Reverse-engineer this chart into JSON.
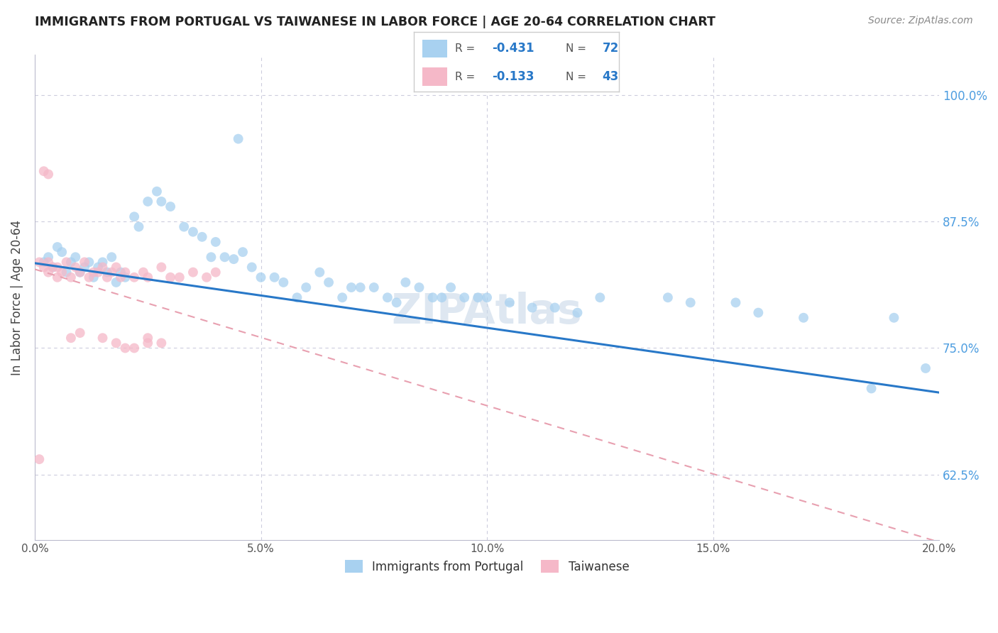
{
  "title": "IMMIGRANTS FROM PORTUGAL VS TAIWANESE IN LABOR FORCE | AGE 20-64 CORRELATION CHART",
  "source": "Source: ZipAtlas.com",
  "xlabel": "",
  "ylabel": "In Labor Force | Age 20-64",
  "xlim": [
    0.0,
    0.2
  ],
  "ylim": [
    0.56,
    1.04
  ],
  "yticks": [
    0.625,
    0.75,
    0.875,
    1.0
  ],
  "ytick_labels": [
    "62.5%",
    "75.0%",
    "87.5%",
    "100.0%"
  ],
  "xticks": [
    0.0,
    0.05,
    0.1,
    0.15,
    0.2
  ],
  "xtick_labels": [
    "0.0%",
    "5.0%",
    "10.0%",
    "15.0%",
    "20.0%"
  ],
  "R_portugal": -0.431,
  "N_portugal": 72,
  "R_taiwanese": -0.133,
  "N_taiwanese": 43,
  "color_portugal": "#a8d1f0",
  "color_taiwanese": "#f5b8c8",
  "trend_color_portugal": "#2878c8",
  "trend_color_taiwanese": "#e8a0b0",
  "background_color": "#ffffff",
  "grid_color": "#ccccdd",
  "portugal_trend_x": [
    0.0,
    0.2
  ],
  "portugal_trend_y": [
    0.834,
    0.706
  ],
  "taiwanese_trend_x": [
    0.0,
    0.2
  ],
  "taiwanese_trend_y": [
    0.828,
    0.558
  ],
  "watermark_text": "ZIPAtlas",
  "watermark_color": "#c8d8e8",
  "watermark_alpha": 0.6
}
